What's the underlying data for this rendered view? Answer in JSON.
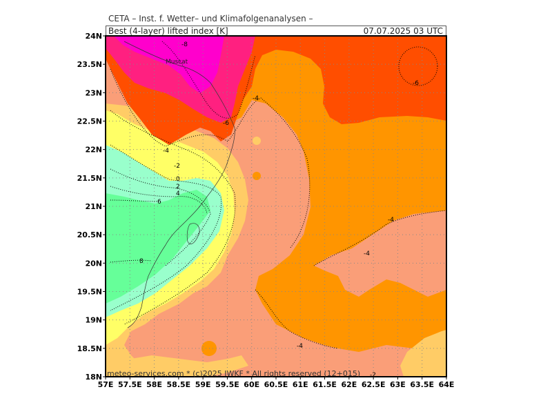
{
  "header": {
    "org": "CETA – Inst. f. Wetter– und Klimafolgenanalysen –",
    "field": "Best (4-layer) lifted index [K]",
    "valid_time": "07.07.2025 03 UTC"
  },
  "footer": {
    "credit": "meteo-services.com * (c)2025 IWKF * All rights reserved (12+015)"
  },
  "map": {
    "lat_labels": [
      "24N",
      "23.5N",
      "23N",
      "22.5N",
      "22N",
      "21.5N",
      "21N",
      "20.5N",
      "20N",
      "19.5N",
      "19N",
      "18.5N",
      "18N"
    ],
    "lon_labels": [
      "57E",
      "57.5E",
      "58E",
      "58.5E",
      "59E",
      "59.5E",
      "60E",
      "60.5E",
      "61E",
      "61.5E",
      "62E",
      "62.5E",
      "63E",
      "63.5E",
      "64E"
    ],
    "city": "Muscat",
    "contour_labels": [
      "-8",
      "-6",
      "-6",
      "-4",
      "-4",
      "-4",
      "-4",
      "-4",
      "-2",
      "-2",
      "0",
      "2",
      "4",
      "6",
      "8"
    ],
    "colors": {
      "le_-8": "#ff00cc",
      "-8_-6": "#ff2080",
      "-6_-4": "#ff4e00",
      "-4_-2": "#ff9500",
      "-2_0": "#fa9e78",
      "0_2": "#ffcc66",
      "2_4": "#ffff66",
      "4_6": "#99ffcc",
      "ge_6": "#66ff99"
    }
  }
}
